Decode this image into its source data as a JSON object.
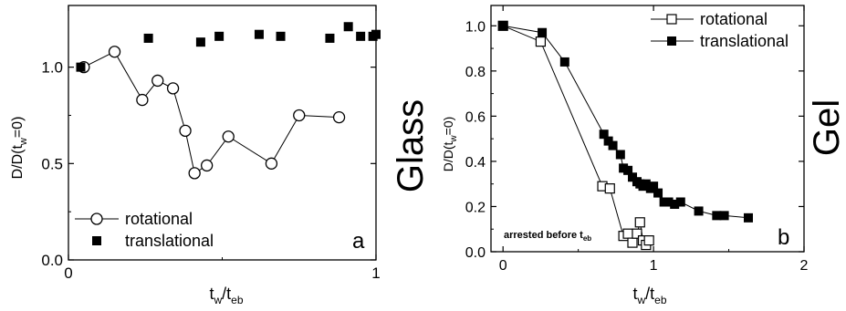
{
  "chart_data": [
    {
      "type": "scatter",
      "panel_label": "a",
      "xlabel": "t",
      "xlabel_sub": "w",
      "xlabel_sep": "/t",
      "xlabel_sub2": "eb",
      "ylabel": "D/D(t =0)",
      "ylabel_parts": [
        "D/D(t",
        "w",
        "=0)"
      ],
      "xlim": [
        0,
        1
      ],
      "ylim": [
        0,
        1.32
      ],
      "xticks": [
        0,
        1
      ],
      "yticks": [
        0.0,
        0.5,
        1.0
      ],
      "ytick_labels": [
        "0.0",
        "0.5",
        "1.0"
      ],
      "xtick_labels": [
        "0",
        "1"
      ],
      "legend_position": "bottom-left",
      "side_label": "Glass",
      "series": [
        {
          "name": "rotational",
          "marker": "open-circle",
          "connected": true,
          "points": [
            [
              0.05,
              1.0
            ],
            [
              0.15,
              1.08
            ],
            [
              0.24,
              0.83
            ],
            [
              0.29,
              0.93
            ],
            [
              0.34,
              0.89
            ],
            [
              0.38,
              0.67
            ],
            [
              0.41,
              0.45
            ],
            [
              0.45,
              0.49
            ],
            [
              0.52,
              0.64
            ],
            [
              0.66,
              0.5
            ],
            [
              0.75,
              0.75
            ],
            [
              0.88,
              0.74
            ]
          ]
        },
        {
          "name": "translational",
          "marker": "filled-square",
          "connected": false,
          "points": [
            [
              0.04,
              1.0
            ],
            [
              0.26,
              1.15
            ],
            [
              0.43,
              1.13
            ],
            [
              0.49,
              1.16
            ],
            [
              0.62,
              1.17
            ],
            [
              0.69,
              1.16
            ],
            [
              0.85,
              1.15
            ],
            [
              0.91,
              1.21
            ],
            [
              0.95,
              1.16
            ],
            [
              0.99,
              1.16
            ],
            [
              1.0,
              1.17
            ]
          ]
        }
      ]
    },
    {
      "type": "scatter",
      "panel_label": "b",
      "xlabel": "t",
      "xlabel_sub": "w",
      "xlabel_sep": "/t",
      "xlabel_sub2": "eb",
      "ylabel_parts": [
        "D/D(t",
        "w",
        "=0)"
      ],
      "xlim": [
        -0.08,
        2
      ],
      "ylim": [
        0,
        1.09
      ],
      "xticks": [
        0,
        1,
        2
      ],
      "xtick_labels": [
        "0",
        "1",
        "2"
      ],
      "yticks": [
        0.0,
        0.2,
        0.4,
        0.6,
        0.8,
        1.0
      ],
      "ytick_labels": [
        "0.0",
        "0.2",
        "0.4",
        "0.6",
        "0.8",
        "1.0"
      ],
      "legend_position": "top-right",
      "side_label": "Gel",
      "annotation": "arrested before t",
      "annotation_sub": "eb",
      "series": [
        {
          "name": "rotational",
          "marker": "open-square",
          "connected": true,
          "points": [
            [
              0.0,
              1.0
            ],
            [
              0.25,
              0.93
            ],
            [
              0.66,
              0.29
            ],
            [
              0.71,
              0.28
            ],
            [
              0.8,
              0.07
            ],
            [
              0.83,
              0.08
            ],
            [
              0.86,
              0.04
            ],
            [
              0.89,
              0.08
            ],
            [
              0.91,
              0.13
            ],
            [
              0.93,
              0.05
            ],
            [
              0.95,
              0.03
            ],
            [
              0.97,
              0.05
            ]
          ]
        },
        {
          "name": "translational",
          "marker": "filled-square",
          "connected": true,
          "points": [
            [
              0.0,
              1.0
            ],
            [
              0.26,
              0.97
            ],
            [
              0.41,
              0.84
            ],
            [
              0.67,
              0.52
            ],
            [
              0.7,
              0.49
            ],
            [
              0.73,
              0.47
            ],
            [
              0.78,
              0.43
            ],
            [
              0.8,
              0.37
            ],
            [
              0.83,
              0.36
            ],
            [
              0.86,
              0.33
            ],
            [
              0.89,
              0.31
            ],
            [
              0.91,
              0.3
            ],
            [
              0.93,
              0.29
            ],
            [
              0.95,
              0.3
            ],
            [
              0.98,
              0.28
            ],
            [
              1.0,
              0.29
            ],
            [
              1.03,
              0.26
            ],
            [
              1.07,
              0.22
            ],
            [
              1.1,
              0.22
            ],
            [
              1.14,
              0.21
            ],
            [
              1.18,
              0.22
            ],
            [
              1.3,
              0.18
            ],
            [
              1.42,
              0.16
            ],
            [
              1.47,
              0.16
            ],
            [
              1.63,
              0.15
            ]
          ]
        }
      ]
    }
  ]
}
